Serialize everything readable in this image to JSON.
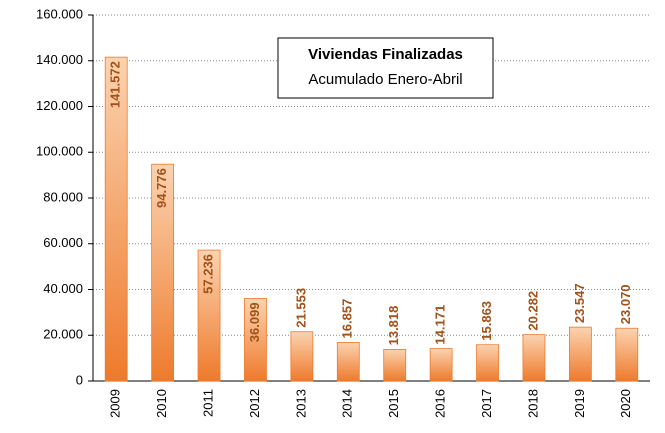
{
  "chart_data": {
    "type": "bar",
    "title": "Viviendas Finalizadas",
    "subtitle": "Acumulado Enero-Abril",
    "categories": [
      "2009",
      "2010",
      "2011",
      "2012",
      "2013",
      "2014",
      "2015",
      "2016",
      "2017",
      "2018",
      "2019",
      "2020"
    ],
    "values": [
      141572,
      94776,
      57236,
      36099,
      21553,
      16857,
      13818,
      14171,
      15863,
      20282,
      23547,
      23070
    ],
    "value_labels": [
      "141.572",
      "94.776",
      "57.236",
      "36.099",
      "21.553",
      "16.857",
      "13.818",
      "14.171",
      "15.863",
      "20.282",
      "23.547",
      "23.070"
    ],
    "color": "#ee7a2c",
    "ylim": [
      0,
      160000
    ],
    "yticks": [
      0,
      {
        "value": 20000,
        "label": "20.000"
      },
      {
        "value": 40000,
        "label": "40.000"
      },
      {
        "value": 60000,
        "label": "60.000"
      },
      {
        "value": 80000,
        "label": "80.000"
      },
      {
        "value": 100000,
        "label": "100.000"
      },
      {
        "value": 120000,
        "label": "120.000"
      },
      {
        "value": 140000,
        "label": "140.000"
      },
      {
        "value": 160000,
        "label": "160.000"
      }
    ],
    "grid": true
  }
}
